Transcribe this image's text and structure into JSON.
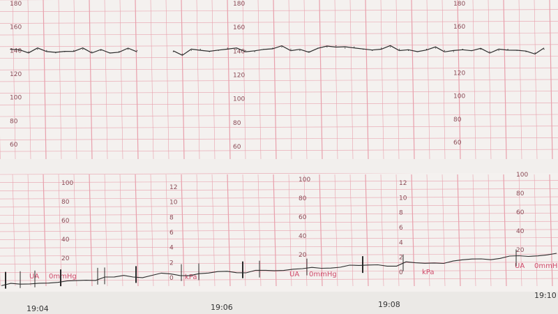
{
  "chart_data": [
    {
      "type": "line",
      "title": "",
      "ylabel": "",
      "ylim": [
        60,
        180
      ],
      "y_ticks": [
        "180",
        "160",
        "140",
        "120",
        "100",
        "80",
        "60"
      ],
      "grid": true,
      "x_time_labels": [
        "19:04",
        "19:06",
        "19:08",
        "19:10"
      ],
      "series": [
        {
          "values": [
            141,
            140,
            139,
            141,
            140,
            138,
            139,
            140,
            141,
            139,
            140,
            138,
            139,
            141,
            140,
            null,
            null,
            null,
            139,
            137,
            140,
            141,
            139,
            140,
            142,
            141,
            140,
            139,
            141,
            142,
            143,
            141,
            140,
            139,
            142,
            143,
            144,
            142,
            143,
            141,
            140,
            142,
            143,
            141,
            140,
            139,
            141,
            142,
            140,
            139,
            141,
            140,
            141,
            139,
            140,
            141,
            140,
            139,
            138,
            141
          ]
        }
      ]
    },
    {
      "type": "line",
      "title": "",
      "ylim": [
        0,
        100
      ],
      "y_ticks": [
        "100",
        "80",
        "60",
        "40",
        "20"
      ],
      "kpa_ticks": [
        "12",
        "10",
        "8",
        "6",
        "4",
        "2",
        "0"
      ],
      "unit_labels": {
        "ua": "UA",
        "ua_unit": "0mmHg",
        "kpa": "kPa"
      },
      "grid": true,
      "series": [
        {
          "values": [
            2,
            3,
            2,
            3,
            4,
            3,
            2,
            3,
            4,
            5,
            4,
            6,
            5,
            7,
            6,
            5,
            6,
            7,
            6,
            5,
            5,
            6,
            5,
            6,
            7,
            6,
            5,
            6,
            5,
            5,
            6,
            7,
            6,
            6,
            5,
            6,
            7,
            8,
            6,
            6,
            7,
            6,
            5,
            8,
            6,
            6,
            7,
            6,
            7,
            7,
            8,
            9,
            8,
            8,
            9,
            9,
            9,
            10,
            10,
            10
          ]
        }
      ]
    }
  ],
  "colors": {
    "paper": "#f4f1ef",
    "grid": "#e8a0ac",
    "trace": "#2a2a2a",
    "label": "#d04a6a"
  }
}
